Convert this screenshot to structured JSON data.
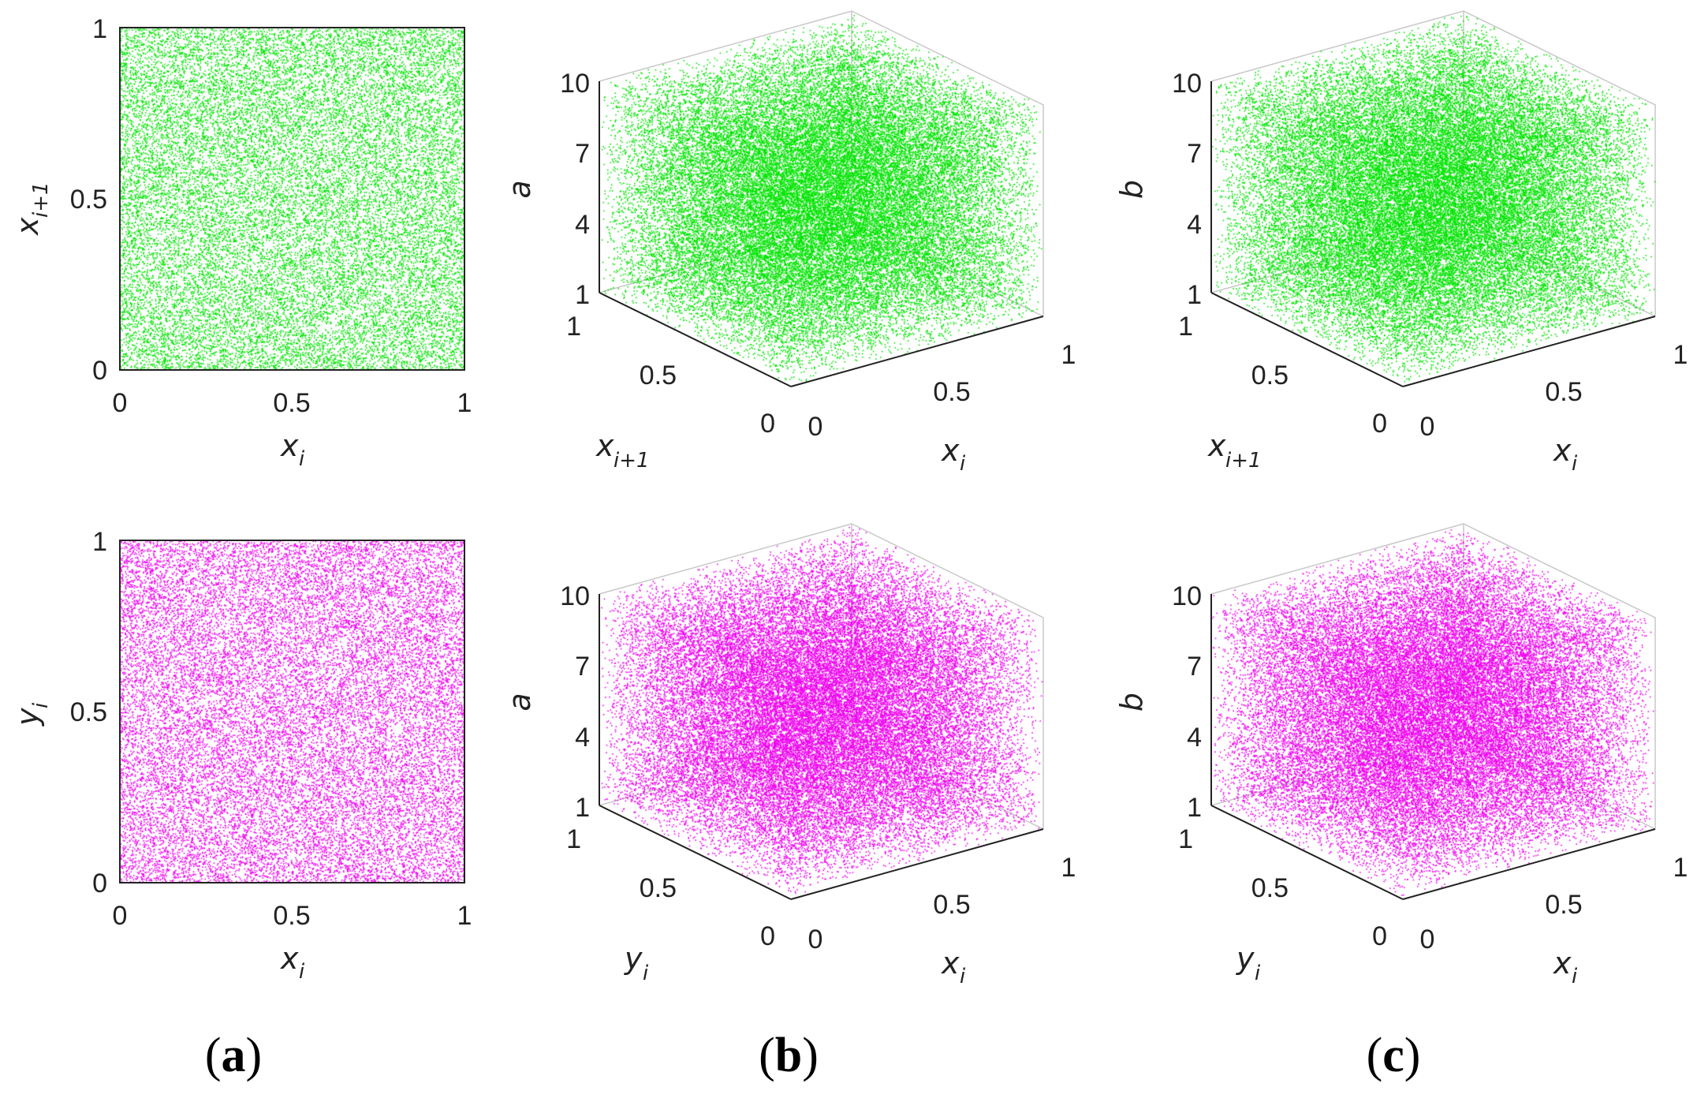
{
  "colors": {
    "top_row": "#00e400",
    "bottom_row": "#ee00ee",
    "axis": "#222222",
    "grid": "#c8c8c8"
  },
  "panel_labels": [
    {
      "open": "(",
      "letter": "a",
      "close": ")"
    },
    {
      "open": "(",
      "letter": "b",
      "close": ")"
    },
    {
      "open": "(",
      "letter": "c",
      "close": ")"
    }
  ],
  "chart_data": [
    {
      "id": "a-top",
      "type": "scatter",
      "dims": 2,
      "series_color": "#00e400",
      "points_shown": "dense uniform scatter filling unit square",
      "xlabel": {
        "main": "x",
        "sub": "i"
      },
      "ylabel": {
        "main": "x",
        "sub": "i+1"
      },
      "xlim": [
        0,
        1
      ],
      "ylim": [
        0,
        1
      ],
      "xticks": [
        "0",
        "0.5",
        "1"
      ],
      "yticks": [
        "0",
        "0.5",
        "1"
      ]
    },
    {
      "id": "b-top",
      "type": "scatter",
      "dims": 3,
      "series_color": "#00e400",
      "points_shown": "dense uniform scatter filling cube",
      "xlabel": {
        "main": "x",
        "sub": "i"
      },
      "ylabel": {
        "main": "x",
        "sub": "i+1"
      },
      "zlabel": {
        "main": "a",
        "sub": ""
      },
      "xlim": [
        0,
        1
      ],
      "ylim": [
        0,
        1
      ],
      "zlim": [
        1,
        10
      ],
      "xticks": [
        "0",
        "0.5",
        "1"
      ],
      "yticks": [
        "0",
        "0.5",
        "1"
      ],
      "zticks": [
        "1",
        "4",
        "7",
        "10"
      ]
    },
    {
      "id": "c-top",
      "type": "scatter",
      "dims": 3,
      "series_color": "#00e400",
      "points_shown": "dense uniform scatter filling cube",
      "xlabel": {
        "main": "x",
        "sub": "i"
      },
      "ylabel": {
        "main": "x",
        "sub": "i+1"
      },
      "zlabel": {
        "main": "b",
        "sub": ""
      },
      "xlim": [
        0,
        1
      ],
      "ylim": [
        0,
        1
      ],
      "zlim": [
        1,
        10
      ],
      "xticks": [
        "0",
        "0.5",
        "1"
      ],
      "yticks": [
        "0",
        "0.5",
        "1"
      ],
      "zticks": [
        "1",
        "4",
        "7",
        "10"
      ]
    },
    {
      "id": "a-bottom",
      "type": "scatter",
      "dims": 2,
      "series_color": "#ee00ee",
      "points_shown": "dense uniform scatter filling unit square",
      "xlabel": {
        "main": "x",
        "sub": "i"
      },
      "ylabel": {
        "main": "y",
        "sub": "i"
      },
      "xlim": [
        0,
        1
      ],
      "ylim": [
        0,
        1
      ],
      "xticks": [
        "0",
        "0.5",
        "1"
      ],
      "yticks": [
        "0",
        "0.5",
        "1"
      ]
    },
    {
      "id": "b-bottom",
      "type": "scatter",
      "dims": 3,
      "series_color": "#ee00ee",
      "points_shown": "dense uniform scatter filling cube",
      "xlabel": {
        "main": "x",
        "sub": "i"
      },
      "ylabel": {
        "main": "y",
        "sub": "i"
      },
      "zlabel": {
        "main": "a",
        "sub": ""
      },
      "xlim": [
        0,
        1
      ],
      "ylim": [
        0,
        1
      ],
      "zlim": [
        1,
        10
      ],
      "xticks": [
        "0",
        "0.5",
        "1"
      ],
      "yticks": [
        "0",
        "0.5",
        "1"
      ],
      "zticks": [
        "1",
        "4",
        "7",
        "10"
      ]
    },
    {
      "id": "c-bottom",
      "type": "scatter",
      "dims": 3,
      "series_color": "#ee00ee",
      "points_shown": "dense uniform scatter filling cube",
      "xlabel": {
        "main": "x",
        "sub": "i"
      },
      "ylabel": {
        "main": "y",
        "sub": "i"
      },
      "zlabel": {
        "main": "b",
        "sub": ""
      },
      "xlim": [
        0,
        1
      ],
      "ylim": [
        0,
        1
      ],
      "zlim": [
        1,
        10
      ],
      "xticks": [
        "0",
        "0.5",
        "1"
      ],
      "yticks": [
        "0",
        "0.5",
        "1"
      ],
      "zticks": [
        "1",
        "4",
        "7",
        "10"
      ]
    }
  ]
}
